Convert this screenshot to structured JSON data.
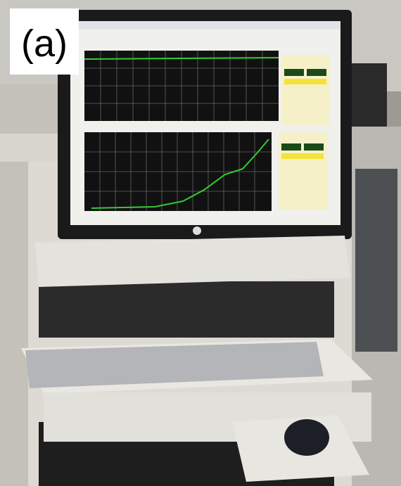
{
  "label": "(a)"
}
